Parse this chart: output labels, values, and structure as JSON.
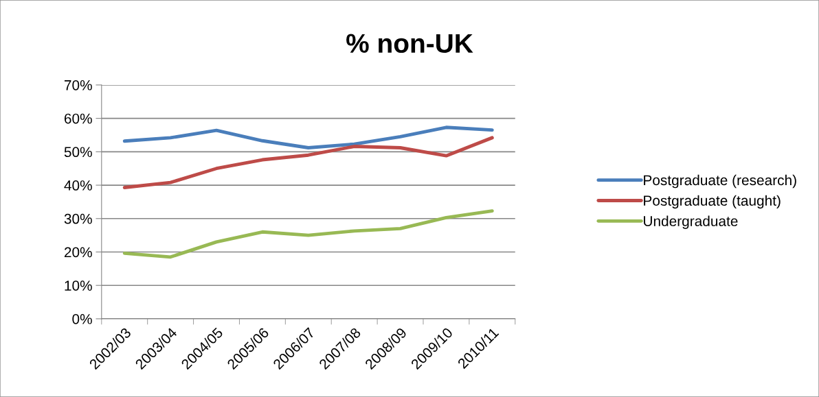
{
  "chart_data": {
    "type": "line",
    "title": "% non-UK",
    "categories": [
      "2002/03",
      "2003/04",
      "2004/05",
      "2005/06",
      "2006/07",
      "2007/08",
      "2008/09",
      "2009/10",
      "2010/11"
    ],
    "series": [
      {
        "name": "Postgraduate (research)",
        "color": "#4a7ebb",
        "values": [
          53.2,
          54.2,
          56.4,
          53.3,
          51.2,
          52.3,
          54.5,
          57.3,
          56.5
        ]
      },
      {
        "name": "Postgraduate (taught)",
        "color": "#be4b48",
        "values": [
          39.3,
          40.8,
          45.0,
          47.6,
          49.0,
          51.6,
          51.2,
          48.8,
          54.2
        ]
      },
      {
        "name": "Undergraduate",
        "color": "#98b954",
        "values": [
          19.6,
          18.5,
          23.0,
          26.0,
          25.0,
          26.3,
          27.0,
          30.3,
          32.3
        ]
      }
    ],
    "ylim": [
      0,
      70
    ],
    "yticks": [
      {
        "value": 0,
        "label": "0%"
      },
      {
        "value": 10,
        "label": "10%"
      },
      {
        "value": 20,
        "label": "20%"
      },
      {
        "value": 30,
        "label": "30%"
      },
      {
        "value": 40,
        "label": "40%"
      },
      {
        "value": 50,
        "label": "50%"
      },
      {
        "value": 60,
        "label": "60%"
      },
      {
        "value": 70,
        "label": "70%"
      }
    ],
    "grid": "y",
    "legend": "right",
    "marker": "none",
    "line_style": "solid"
  }
}
